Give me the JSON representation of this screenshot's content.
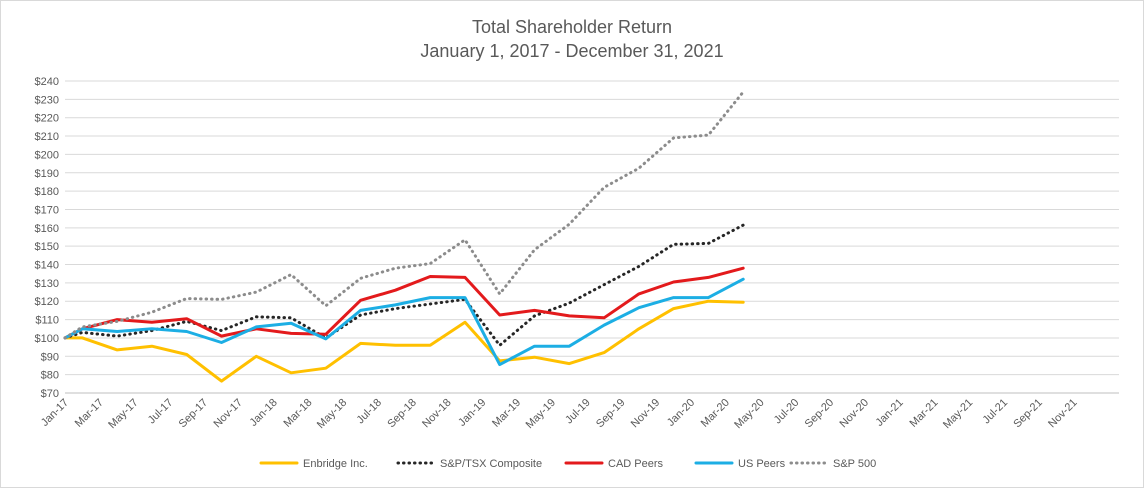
{
  "chart_data": {
    "type": "line",
    "title": "Total Shareholder Return",
    "subtitle": "January 1, 2017 - December 31, 2021",
    "xlabel": "",
    "ylabel": "",
    "ylim": [
      70,
      240
    ],
    "ytick_step": 10,
    "ytick_prefix": "$",
    "grid": true,
    "legend_position": "bottom",
    "categories": [
      "Jan-17",
      "Mar-17",
      "May-17",
      "Jul-17",
      "Sep-17",
      "Nov-17",
      "Jan-18",
      "Mar-18",
      "May-18",
      "Jul-18",
      "Sep-18",
      "Nov-18",
      "Jan-19",
      "Mar-19",
      "May-19",
      "Jul-19",
      "Sep-19",
      "Nov-19",
      "Jan-20",
      "Mar-20",
      "May-20",
      "Jul-20",
      "Sep-20",
      "Nov-20",
      "Jan-21",
      "Mar-21",
      "May-21",
      "Jul-21",
      "Sep-21",
      "Nov-21"
    ],
    "series": [
      {
        "name": "Enbridge Inc.",
        "color": "#FFC000",
        "style": "solid",
        "points": [
          [
            0,
            100
          ],
          [
            1,
            100
          ],
          [
            3,
            93.5
          ],
          [
            5,
            95.5
          ],
          [
            7,
            91
          ],
          [
            9,
            76.5
          ],
          [
            11,
            90
          ],
          [
            13,
            81
          ],
          [
            15,
            83.5
          ],
          [
            17,
            97
          ],
          [
            19,
            96
          ],
          [
            21,
            96
          ],
          [
            23,
            108.5
          ],
          [
            25,
            87.5
          ],
          [
            27,
            89.5
          ],
          [
            29,
            86
          ],
          [
            31,
            92
          ],
          [
            33,
            105
          ],
          [
            35,
            116
          ],
          [
            37,
            120
          ],
          [
            39,
            119.5
          ]
        ]
      },
      {
        "name": "S&P/TSX Composite",
        "color": "#262626",
        "style": "dotted",
        "points": [
          [
            0,
            100
          ],
          [
            1,
            103
          ],
          [
            3,
            101
          ],
          [
            5,
            104
          ],
          [
            7,
            109
          ],
          [
            9,
            104
          ],
          [
            11,
            111.5
          ],
          [
            13,
            111
          ],
          [
            15,
            100
          ],
          [
            17,
            112.5
          ],
          [
            19,
            116
          ],
          [
            21,
            118.5
          ],
          [
            23,
            121
          ],
          [
            25,
            96
          ],
          [
            27,
            112
          ],
          [
            29,
            119
          ],
          [
            31,
            129
          ],
          [
            33,
            139
          ],
          [
            35,
            151
          ],
          [
            37,
            151.5
          ],
          [
            39,
            161.5
          ]
        ]
      },
      {
        "name": "CAD Peers",
        "color": "#E31A1C",
        "style": "solid",
        "points": [
          [
            0,
            100
          ],
          [
            1,
            105
          ],
          [
            3,
            110
          ],
          [
            5,
            108.5
          ],
          [
            7,
            110.5
          ],
          [
            9,
            101
          ],
          [
            11,
            105
          ],
          [
            13,
            102.5
          ],
          [
            15,
            102
          ],
          [
            17,
            120.5
          ],
          [
            19,
            126
          ],
          [
            21,
            133.5
          ],
          [
            23,
            133
          ],
          [
            25,
            112.5
          ],
          [
            27,
            115
          ],
          [
            29,
            112
          ],
          [
            31,
            111
          ],
          [
            33,
            124
          ],
          [
            35,
            130.5
          ],
          [
            37,
            133
          ],
          [
            39,
            138
          ]
        ]
      },
      {
        "name": "US Peers",
        "color": "#1CAEE4",
        "style": "solid",
        "points": [
          [
            0,
            100
          ],
          [
            1,
            105
          ],
          [
            3,
            103.5
          ],
          [
            5,
            105
          ],
          [
            7,
            103.5
          ],
          [
            9,
            97.5
          ],
          [
            11,
            106
          ],
          [
            13,
            108
          ],
          [
            15,
            99.5
          ],
          [
            17,
            115
          ],
          [
            19,
            118
          ],
          [
            21,
            122
          ],
          [
            23,
            122
          ],
          [
            25,
            85.5
          ],
          [
            27,
            95.5
          ],
          [
            29,
            95.5
          ],
          [
            31,
            107
          ],
          [
            33,
            116.5
          ],
          [
            35,
            122
          ],
          [
            37,
            122
          ],
          [
            39,
            132
          ]
        ]
      },
      {
        "name": "S&P 500",
        "color": "#8C8C8C",
        "style": "dotted",
        "points": [
          [
            0,
            100
          ],
          [
            1,
            106
          ],
          [
            3,
            109
          ],
          [
            5,
            114
          ],
          [
            7,
            121.5
          ],
          [
            9,
            121
          ],
          [
            11,
            125
          ],
          [
            13,
            134.5
          ],
          [
            15,
            117.5
          ],
          [
            17,
            132.5
          ],
          [
            19,
            138
          ],
          [
            21,
            140.5
          ],
          [
            23,
            153.5
          ],
          [
            25,
            124
          ],
          [
            27,
            148
          ],
          [
            29,
            162
          ],
          [
            31,
            182
          ],
          [
            33,
            192.5
          ],
          [
            35,
            209
          ],
          [
            37,
            210.5
          ],
          [
            39,
            234
          ]
        ]
      }
    ]
  }
}
